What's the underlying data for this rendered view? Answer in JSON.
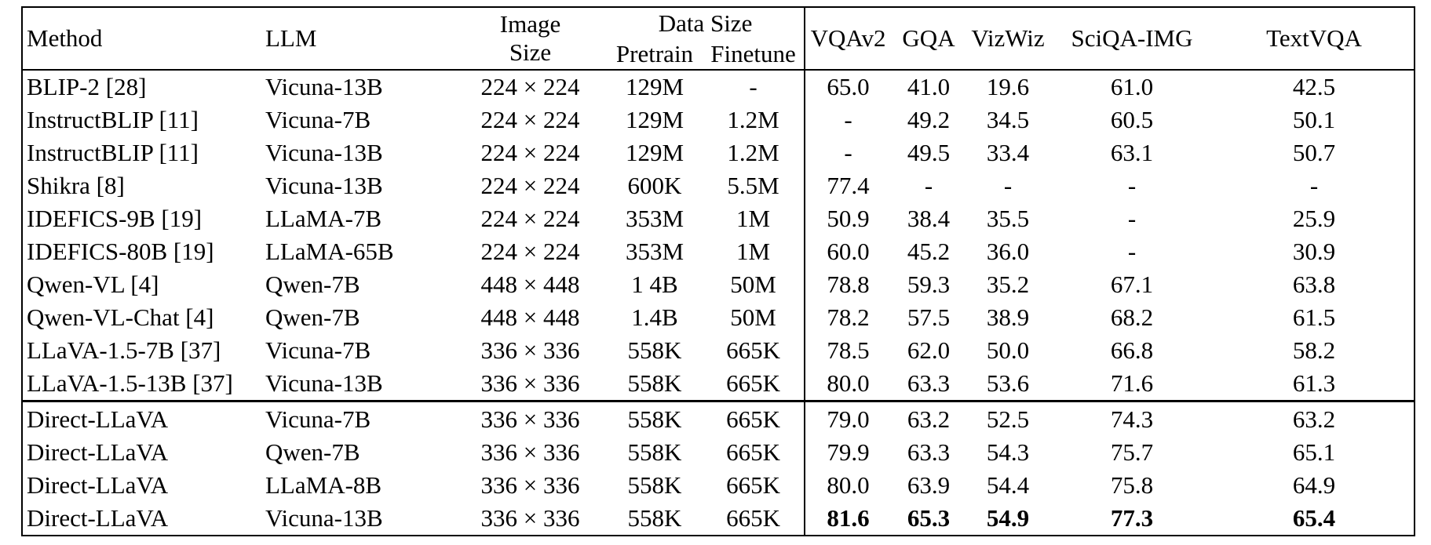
{
  "table": {
    "header": {
      "method": "Method",
      "llm": "LLM",
      "image_size_line1": "Image",
      "image_size_line2": "Size",
      "data_size": "Data Size",
      "pretrain": "Pretrain",
      "finetune": "Finetune",
      "benchmarks": [
        "VQAv2",
        "GQA",
        "VizWiz",
        "SciQA-IMG",
        "TextVQA"
      ]
    },
    "groups": [
      {
        "rows": [
          {
            "method": "BLIP-2 [28]",
            "llm": "Vicuna-13B",
            "image_size": "224 × 224",
            "pretrain": "129M",
            "finetune": "-",
            "scores": [
              "65.0",
              "41.0",
              "19.6",
              "61.0",
              "42.5"
            ],
            "bold_scores": false
          },
          {
            "method": "InstructBLIP [11]",
            "llm": "Vicuna-7B",
            "image_size": "224 × 224",
            "pretrain": "129M",
            "finetune": "1.2M",
            "scores": [
              "-",
              "49.2",
              "34.5",
              "60.5",
              "50.1"
            ],
            "bold_scores": false
          },
          {
            "method": "InstructBLIP [11]",
            "llm": "Vicuna-13B",
            "image_size": "224 × 224",
            "pretrain": "129M",
            "finetune": "1.2M",
            "scores": [
              "-",
              "49.5",
              "33.4",
              "63.1",
              "50.7"
            ],
            "bold_scores": false
          },
          {
            "method": "Shikra [8]",
            "llm": "Vicuna-13B",
            "image_size": "224 × 224",
            "pretrain": "600K",
            "finetune": "5.5M",
            "scores": [
              "77.4",
              "-",
              "-",
              "-",
              "-"
            ],
            "bold_scores": false
          },
          {
            "method": "IDEFICS-9B [19]",
            "llm": "LLaMA-7B",
            "image_size": "224 × 224",
            "pretrain": "353M",
            "finetune": "1M",
            "scores": [
              "50.9",
              "38.4",
              "35.5",
              "-",
              "25.9"
            ],
            "bold_scores": false
          },
          {
            "method": "IDEFICS-80B [19]",
            "llm": "LLaMA-65B",
            "image_size": "224 × 224",
            "pretrain": "353M",
            "finetune": "1M",
            "scores": [
              "60.0",
              "45.2",
              "36.0",
              "-",
              "30.9"
            ],
            "bold_scores": false
          },
          {
            "method": "Qwen-VL [4]",
            "llm": "Qwen-7B",
            "image_size": "448 × 448",
            "pretrain": "1 4B",
            "finetune": "50M",
            "scores": [
              "78.8",
              "59.3",
              "35.2",
              "67.1",
              "63.8"
            ],
            "bold_scores": false
          },
          {
            "method": "Qwen-VL-Chat [4]",
            "llm": "Qwen-7B",
            "image_size": "448 × 448",
            "pretrain": "1.4B",
            "finetune": "50M",
            "scores": [
              "78.2",
              "57.5",
              "38.9",
              "68.2",
              "61.5"
            ],
            "bold_scores": false
          },
          {
            "method": "LLaVA-1.5-7B [37]",
            "llm": "Vicuna-7B",
            "image_size": "336 × 336",
            "pretrain": "558K",
            "finetune": "665K",
            "scores": [
              "78.5",
              "62.0",
              "50.0",
              "66.8",
              "58.2"
            ],
            "bold_scores": false
          },
          {
            "method": "LLaVA-1.5-13B [37]",
            "llm": "Vicuna-13B",
            "image_size": "336 × 336",
            "pretrain": "558K",
            "finetune": "665K",
            "scores": [
              "80.0",
              "63.3",
              "53.6",
              "71.6",
              "61.3"
            ],
            "bold_scores": false
          }
        ]
      },
      {
        "rows": [
          {
            "method": "Direct-LLaVA",
            "llm": "Vicuna-7B",
            "image_size": "336 × 336",
            "pretrain": "558K",
            "finetune": "665K",
            "scores": [
              "79.0",
              "63.2",
              "52.5",
              "74.3",
              "63.2"
            ],
            "bold_scores": false
          },
          {
            "method": "Direct-LLaVA",
            "llm": "Qwen-7B",
            "image_size": "336 × 336",
            "pretrain": "558K",
            "finetune": "665K",
            "scores": [
              "79.9",
              "63.3",
              "54.3",
              "75.7",
              "65.1"
            ],
            "bold_scores": false
          },
          {
            "method": "Direct-LLaVA",
            "llm": "LLaMA-8B",
            "image_size": "336 × 336",
            "pretrain": "558K",
            "finetune": "665K",
            "scores": [
              "80.0",
              "63.9",
              "54.4",
              "75.8",
              "64.9"
            ],
            "bold_scores": false
          },
          {
            "method": "Direct-LLaVA",
            "llm": "Vicuna-13B",
            "image_size": "336 × 336",
            "pretrain": "558K",
            "finetune": "665K",
            "scores": [
              "81.6",
              "65.3",
              "54.9",
              "77.3",
              "65.4"
            ],
            "bold_scores": true
          }
        ]
      }
    ]
  }
}
